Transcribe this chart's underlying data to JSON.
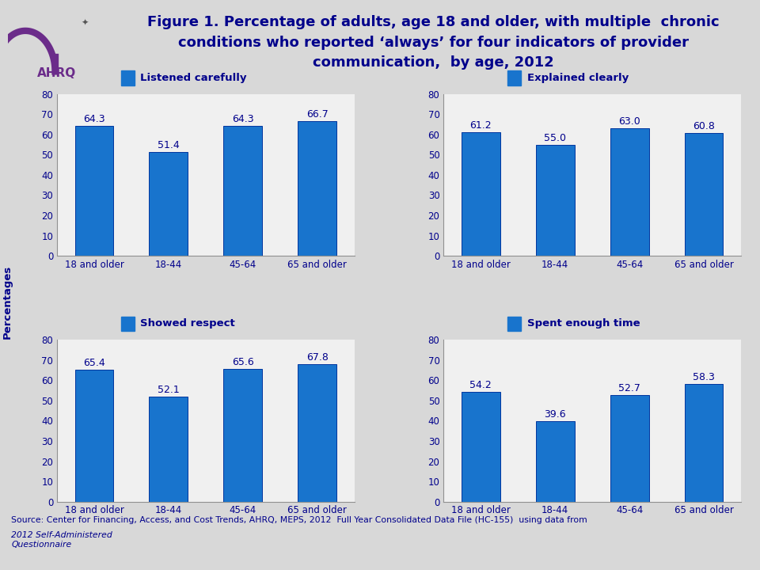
{
  "title_line1": "Figure 1. Percentage of adults, age 18 and older, with multiple  chronic",
  "title_line2": "conditions who reported ‘always’ for four indicators of provider",
  "title_line3": "communication,  by age, 2012",
  "title_color": "#00008B",
  "background_color": "#D8D8D8",
  "plot_background": "#F0F0F0",
  "bar_color": "#1874CD",
  "bar_edge_color": "#00369F",
  "categories": [
    "18 and older",
    "18-44",
    "45-64",
    "65 and older"
  ],
  "subplots": [
    {
      "title": "Listened carefully",
      "values": [
        64.3,
        51.4,
        64.3,
        66.7
      ]
    },
    {
      "title": "Explained clearly",
      "values": [
        61.2,
        55.0,
        63.0,
        60.8
      ]
    },
    {
      "title": "Showed respect",
      "values": [
        65.4,
        52.1,
        65.6,
        67.8
      ]
    },
    {
      "title": "Spent enough time",
      "values": [
        54.2,
        39.6,
        52.7,
        58.3
      ]
    }
  ],
  "ylabel": "Percentages",
  "ylim": [
    0,
    80
  ],
  "yticks": [
    0,
    10,
    20,
    30,
    40,
    50,
    60,
    70,
    80
  ],
  "source_normal": "Source: Center for Financing, Access, and Cost Trends, AHRQ, MEPS, 2012  Full Year Consolidated Data File (HC-155)  using data from ",
  "source_italic": "2012 Self-Administered\nQuestionnaire",
  "title_fontsize": 13,
  "subtitle_fontsize": 9.5,
  "tick_fontsize": 8.5,
  "value_fontsize": 9,
  "source_fontsize": 7.8
}
